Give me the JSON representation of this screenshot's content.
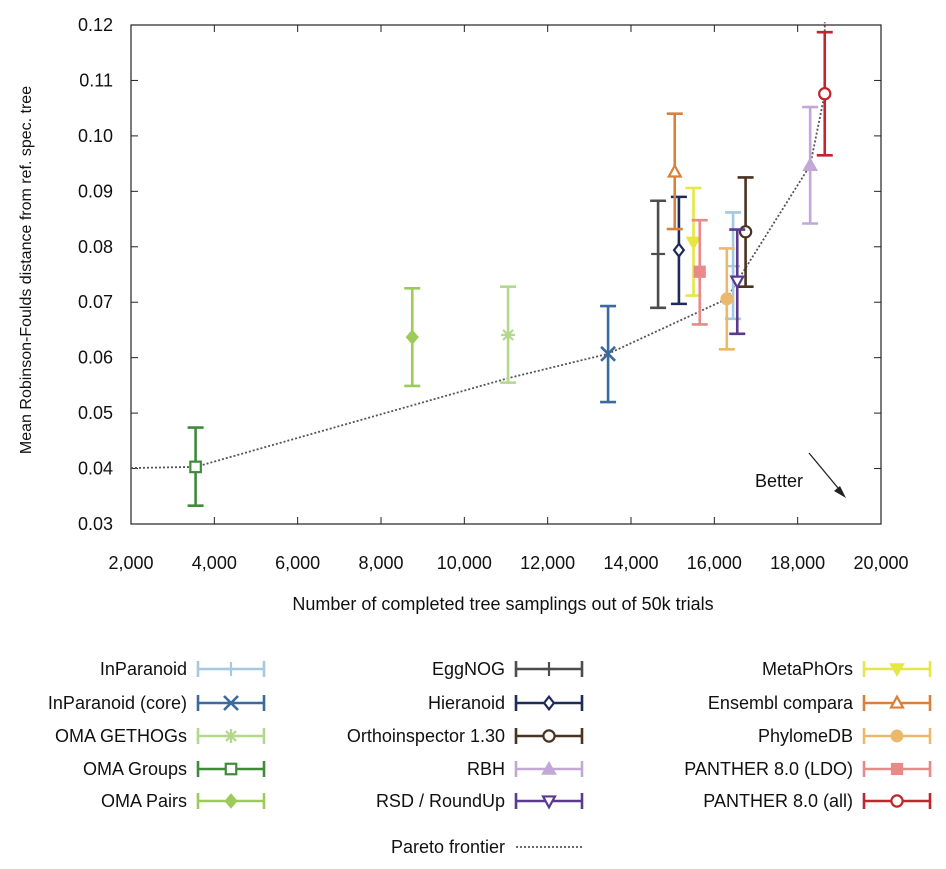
{
  "chart_data": {
    "type": "scatter",
    "xlabel": "Number of completed tree samplings out of 50k trials",
    "ylabel": "Mean Robinson-Foulds distance from ref. spec. tree",
    "xlim": [
      2000,
      20000
    ],
    "ylim": [
      0.03,
      0.12
    ],
    "xticks": [
      "2,000",
      "4,000",
      "6,000",
      "8,000",
      "10,000",
      "12,000",
      "14,000",
      "16,000",
      "18,000",
      "20,000"
    ],
    "yticks": [
      "0.03",
      "0.04",
      "0.05",
      "0.06",
      "0.07",
      "0.08",
      "0.09",
      "0.10",
      "0.11",
      "0.12"
    ],
    "annotation": "Better",
    "series": [
      {
        "name": "InParanoid",
        "color": "#a6c8e0",
        "marker": "plus",
        "x": 16450,
        "y": 0.0765,
        "ylow": 0.067,
        "yhigh": 0.0862
      },
      {
        "name": "InParanoid (core)",
        "color": "#3a6a9e",
        "marker": "cross",
        "x": 13450,
        "y": 0.0607,
        "ylow": 0.052,
        "yhigh": 0.0693
      },
      {
        "name": "OMA GETHOGs",
        "color": "#b2d88c",
        "marker": "asterisk",
        "x": 11050,
        "y": 0.0641,
        "ylow": 0.0555,
        "yhigh": 0.0728
      },
      {
        "name": "OMA Groups",
        "color": "#3f8b3a",
        "marker": "square-open",
        "x": 3550,
        "y": 0.0403,
        "ylow": 0.0333,
        "yhigh": 0.0474
      },
      {
        "name": "OMA Pairs",
        "color": "#9ccb5a",
        "marker": "diamond",
        "x": 8750,
        "y": 0.0637,
        "ylow": 0.0549,
        "yhigh": 0.0725
      },
      {
        "name": "EggNOG",
        "color": "#4d4d4d",
        "marker": "plus",
        "x": 14650,
        "y": 0.0787,
        "ylow": 0.069,
        "yhigh": 0.0883
      },
      {
        "name": "Hieranoid",
        "color": "#1e2b59",
        "marker": "diamond-open",
        "x": 15150,
        "y": 0.0794,
        "ylow": 0.0697,
        "yhigh": 0.089
      },
      {
        "name": "Orthoinspector 1.30",
        "color": "#4a3320",
        "marker": "circle-open",
        "x": 16750,
        "y": 0.0827,
        "ylow": 0.0728,
        "yhigh": 0.0925
      },
      {
        "name": "RBH",
        "color": "#c1a8d6",
        "marker": "triangle-up",
        "x": 18300,
        "y": 0.0947,
        "ylow": 0.0842,
        "yhigh": 0.1052
      },
      {
        "name": "RSD / RoundUp",
        "color": "#5a3a8f",
        "marker": "triangle-down-open",
        "x": 16550,
        "y": 0.0738,
        "ylow": 0.0643,
        "yhigh": 0.0831
      },
      {
        "name": "MetaPhOrs",
        "color": "#e6e645",
        "marker": "triangle-down",
        "x": 15500,
        "y": 0.0808,
        "ylow": 0.0712,
        "yhigh": 0.0906
      },
      {
        "name": "Ensembl compara",
        "color": "#d9813a",
        "marker": "triangle-up-open",
        "x": 15050,
        "y": 0.0935,
        "ylow": 0.0832,
        "yhigh": 0.104
      },
      {
        "name": "PhylomeDB",
        "color": "#ecb96c",
        "marker": "circle",
        "x": 16300,
        "y": 0.0706,
        "ylow": 0.0615,
        "yhigh": 0.0797
      },
      {
        "name": "PANTHER 8.0 (LDO)",
        "color": "#e88a8a",
        "marker": "square",
        "x": 15650,
        "y": 0.0755,
        "ylow": 0.066,
        "yhigh": 0.0848
      },
      {
        "name": "PANTHER 8.0 (all)",
        "color": "#c0262d",
        "marker": "circle-open",
        "x": 18650,
        "y": 0.1076,
        "ylow": 0.0965,
        "yhigh": 0.1187
      }
    ],
    "pareto_frontier": {
      "name": "Pareto frontier",
      "color": "#555555",
      "x": [
        2000,
        3550,
        11050,
        13450,
        16300,
        16550,
        18300,
        18650,
        18650
      ],
      "y": [
        0.0401,
        0.0403,
        0.0563,
        0.0607,
        0.0706,
        0.0738,
        0.0947,
        0.1076,
        0.1205
      ]
    },
    "legend_columns": [
      [
        "InParanoid",
        "InParanoid (core)",
        "OMA GETHOGs",
        "OMA Groups",
        "OMA Pairs"
      ],
      [
        "EggNOG",
        "Hieranoid",
        "Orthoinspector 1.30",
        "RBH",
        "RSD / RoundUp"
      ],
      [
        "MetaPhOrs",
        "Ensembl compara",
        "PhylomeDB",
        "PANTHER 8.0 (LDO)",
        "PANTHER 8.0 (all)"
      ]
    ]
  }
}
